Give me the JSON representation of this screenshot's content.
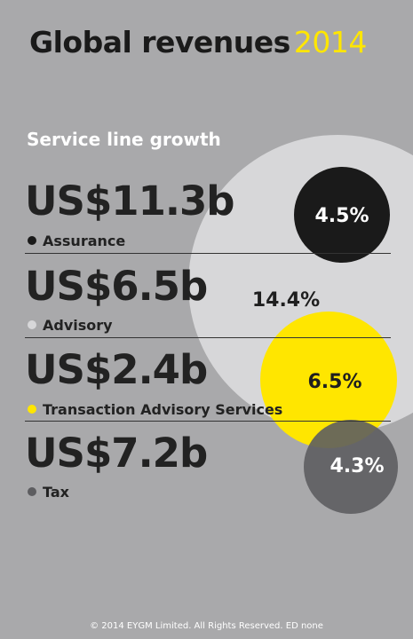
{
  "header": {
    "title": "Global revenues",
    "year": "2014",
    "subtitle": "Service line growth"
  },
  "colors": {
    "background": "#a9a9ab",
    "assurance": "#1a1a1a",
    "advisory": "#d7d7d9",
    "transaction": "#ffe600",
    "tax": "#5d5d60",
    "title_accent": "#ffe600"
  },
  "chart_data": {
    "type": "bubble",
    "title": "Service line growth",
    "series": [
      {
        "name": "Assurance",
        "revenue": "US$11.3b",
        "revenue_usd_b": 11.3,
        "growth": "4.5%",
        "growth_pct": 4.5,
        "color": "#1a1a1a"
      },
      {
        "name": "Advisory",
        "revenue": "US$6.5b",
        "revenue_usd_b": 6.5,
        "growth": "14.4%",
        "growth_pct": 14.4,
        "color": "#d7d7d9"
      },
      {
        "name": "Transaction Advisory Services",
        "revenue": "US$2.4b",
        "revenue_usd_b": 2.4,
        "growth": "6.5%",
        "growth_pct": 6.5,
        "color": "#ffe600"
      },
      {
        "name": "Tax",
        "revenue": "US$7.2b",
        "revenue_usd_b": 7.2,
        "growth": "4.3%",
        "growth_pct": 4.3,
        "color": "#5d5d60"
      }
    ]
  },
  "footer": {
    "text": "© 2014 EYGM Limited. All Rights Reserved. ED none"
  }
}
